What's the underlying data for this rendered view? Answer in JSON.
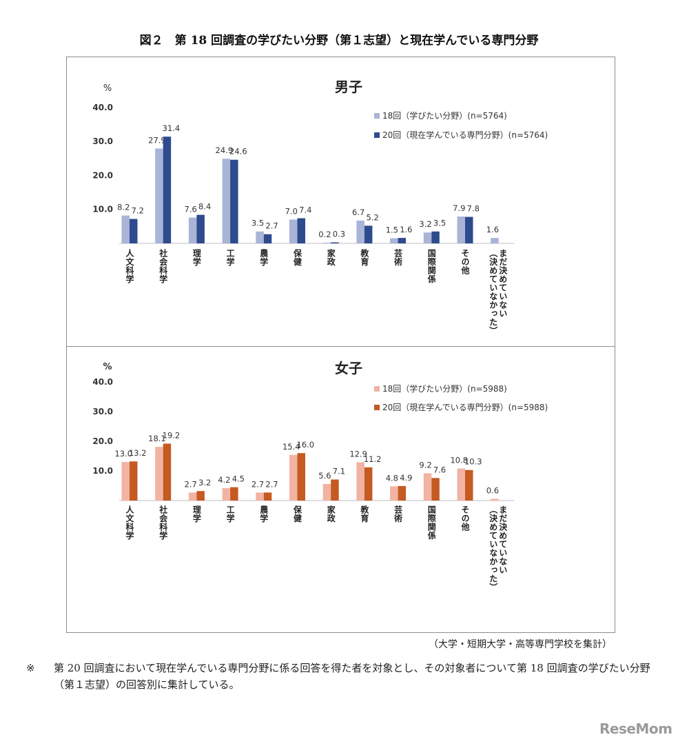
{
  "figure_title": "図２　第 18 回調査の学びたい分野（第１志望）と現在学んでいる専門分野",
  "source_note": "（大学・短期大学・高等専門学校を集計）",
  "footnote": {
    "mark": "※",
    "text": "第 20 回調査において現在学んでいる専門分野に係る回答を得た者を対象とし、その対象者について第 18 回調査の学びたい分野（第１志望）の回答別に集計している。"
  },
  "logo_text": "ReseMom",
  "chart_data": [
    {
      "type": "bar",
      "title": "男子",
      "ylabel": "%",
      "ylim": [
        0,
        40
      ],
      "yticks": [
        "10.0",
        "20.0",
        "30.0",
        "40.0"
      ],
      "categories": [
        "人文科学",
        "社会科学",
        "理学",
        "工学",
        "農学",
        "保健",
        "家政",
        "教育",
        "芸術",
        "国際関係",
        "その他",
        "まだ決めていない（決めていなかった）"
      ],
      "series": [
        {
          "name": "18回（学びたい分野）(n=5764)",
          "color": "#a9b4d6",
          "values": [
            8.2,
            27.9,
            7.6,
            24.9,
            3.5,
            7.0,
            0.2,
            6.7,
            1.5,
            3.2,
            7.9,
            1.6
          ],
          "labels": [
            "8.2",
            "27.9",
            "7.6",
            "24.9",
            "3.5",
            "7.0",
            "0.2",
            "6.7",
            "1.5",
            "3.2",
            "7.9",
            "1.6"
          ]
        },
        {
          "name": "20回（現在学んでいる専門分野）(n=5764)",
          "color": "#2e4b8e",
          "values": [
            7.2,
            31.4,
            8.4,
            24.6,
            2.7,
            7.4,
            0.3,
            5.2,
            1.6,
            3.5,
            7.8,
            null
          ],
          "labels": [
            "7.2",
            "31.4",
            "8.4",
            "24.6",
            "2.7",
            "7.4",
            "0.3",
            "5.2",
            "1.6",
            "3.5",
            "7.8",
            ""
          ]
        }
      ],
      "legend": "top-right",
      "grid": false
    },
    {
      "type": "bar",
      "title": "女子",
      "ylabel": "%",
      "ylim": [
        0,
        40
      ],
      "yticks": [
        "10.0",
        "20.0",
        "30.0",
        "40.0"
      ],
      "categories": [
        "人文科学",
        "社会科学",
        "理学",
        "工学",
        "農学",
        "保健",
        "家政",
        "教育",
        "芸術",
        "国際関係",
        "その他",
        "まだ決めていない（決めていなかった）"
      ],
      "series": [
        {
          "name": "18回（学びたい分野）(n=5988)",
          "color": "#f2b3a2",
          "values": [
            13.0,
            18.1,
            2.7,
            4.2,
            2.7,
            15.4,
            5.6,
            12.9,
            4.8,
            9.2,
            10.8,
            0.6
          ],
          "labels": [
            "13.0",
            "18.1",
            "2.7",
            "4.2",
            "2.7",
            "15.4",
            "5.6",
            "12.9",
            "4.8",
            "9.2",
            "10.8",
            "0.6"
          ]
        },
        {
          "name": "20回（現在学んでいる専門分野）(n=5988)",
          "color": "#c55a22",
          "values": [
            13.2,
            19.2,
            3.2,
            4.5,
            2.7,
            16.0,
            7.1,
            11.2,
            4.9,
            7.6,
            10.3,
            null
          ],
          "labels": [
            "13.2",
            "19.2",
            "3.2",
            "4.5",
            "2.7",
            "16.0",
            "7.1",
            "11.2",
            "4.9",
            "7.6",
            "10.3",
            ""
          ]
        }
      ],
      "legend": "top-right",
      "grid": false
    }
  ]
}
